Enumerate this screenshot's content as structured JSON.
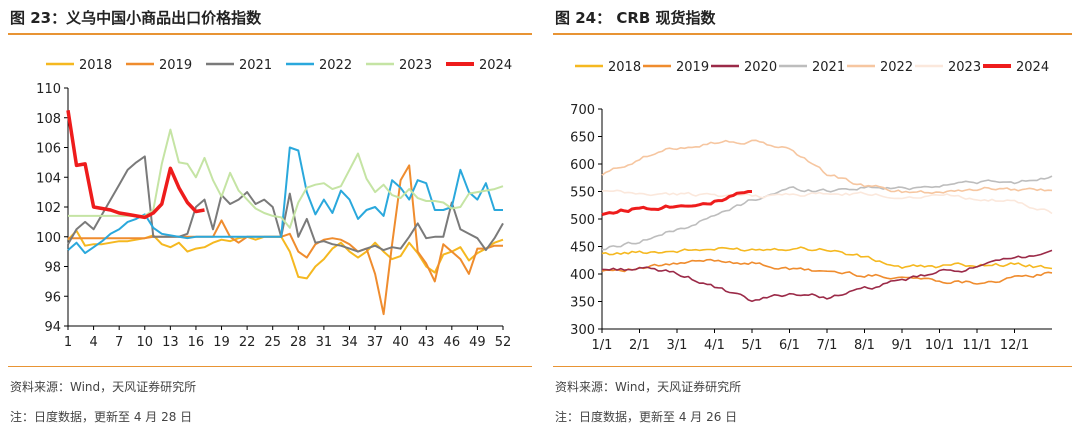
{
  "left": {
    "title": "图 23：义乌中国小商品出口价格指数",
    "source": "资料来源：Wind，天风证券研究所",
    "footnote": "注：日度数据，更新至 4 月 28 日"
  },
  "right": {
    "title": "图 24： CRB 现货指数",
    "source": "资料来源：Wind，天风证券研究所",
    "footnote": "注：日度数据，更新至 4 月 26 日"
  },
  "chart_data": [
    {
      "type": "line",
      "title": "图 23：义乌中国小商品出口价格指数",
      "x_tick_labels": [
        "1",
        "4",
        "7",
        "10",
        "13",
        "16",
        "19",
        "22",
        "25",
        "28",
        "31",
        "34",
        "37",
        "40",
        "43",
        "46",
        "49",
        "52"
      ],
      "xlim": [
        1,
        52
      ],
      "ylim": [
        94,
        110
      ],
      "y_ticks": [
        94,
        96,
        98,
        100,
        102,
        104,
        106,
        108,
        110
      ],
      "grid": false,
      "legend_position": "top",
      "series": [
        {
          "name": "2018",
          "color": "#f5b820",
          "values": [
            99.8,
            100.4,
            99.4,
            99.5,
            99.5,
            99.6,
            99.7,
            99.7,
            99.8,
            99.9,
            100.1,
            99.5,
            99.3,
            99.6,
            99.0,
            99.2,
            99.3,
            99.6,
            99.8,
            99.7,
            99.9,
            100.0,
            99.8,
            100.0,
            100.0,
            100.0,
            99.0,
            97.3,
            97.2,
            98.0,
            98.5,
            99.2,
            99.6,
            99.0,
            98.6,
            99.0,
            99.6,
            99.0,
            98.5,
            98.7,
            99.6,
            98.9,
            98.0,
            97.6,
            98.8,
            99.0,
            99.3,
            98.4,
            98.9,
            99.2,
            99.6,
            99.8
          ]
        },
        {
          "name": "2019",
          "color": "#ef8c2e",
          "values": [
            99.9,
            99.9,
            99.9,
            99.9,
            99.9,
            99.9,
            99.9,
            99.9,
            99.9,
            99.9,
            100.0,
            100.0,
            100.0,
            100.0,
            100.0,
            100.0,
            100.0,
            100.0,
            101.1,
            100.0,
            99.6,
            100.0,
            100.0,
            100.0,
            100.0,
            100.0,
            100.2,
            99.0,
            98.6,
            99.5,
            99.8,
            99.9,
            99.8,
            99.5,
            99.0,
            99.2,
            97.5,
            94.8,
            99.5,
            103.8,
            104.8,
            99.0,
            98.2,
            97.0,
            99.5,
            99.0,
            98.5,
            97.5,
            99.2,
            99.2,
            99.4,
            99.4
          ]
        },
        {
          "name": "2021",
          "color": "#7a7a7a",
          "values": [
            99.5,
            100.5,
            101.0,
            100.5,
            101.5,
            102.5,
            103.5,
            104.5,
            105.0,
            105.4,
            100.0,
            100.0,
            100.0,
            100.0,
            100.2,
            102.0,
            102.5,
            100.5,
            102.8,
            102.2,
            102.5,
            103.0,
            102.2,
            102.5,
            102.0,
            100.0,
            102.9,
            100.0,
            101.2,
            99.6,
            99.7,
            99.5,
            99.4,
            99.2,
            99.0,
            99.2,
            99.4,
            99.1,
            99.3,
            99.2,
            100.0,
            100.9,
            99.9,
            100.0,
            100.0,
            102.3,
            100.5,
            100.2,
            99.9,
            99.1,
            99.9,
            100.9
          ]
        },
        {
          "name": "2022",
          "color": "#2aa8dc",
          "values": [
            99.1,
            99.6,
            98.9,
            99.3,
            99.7,
            100.2,
            100.5,
            101.0,
            101.2,
            101.5,
            100.6,
            100.2,
            100.1,
            100.0,
            99.9,
            100.0,
            100.0,
            100.0,
            100.0,
            100.0,
            100.0,
            100.0,
            100.0,
            100.0,
            100.0,
            100.0,
            106.0,
            105.8,
            103.0,
            101.5,
            102.5,
            101.6,
            103.1,
            102.5,
            101.2,
            101.8,
            102.0,
            101.4,
            103.8,
            103.3,
            102.5,
            103.8,
            103.6,
            101.8,
            101.8,
            102.0,
            104.5,
            103.0,
            102.5,
            103.6,
            101.8,
            101.8
          ]
        },
        {
          "name": "2023",
          "color": "#c5e4a4",
          "values": [
            101.4,
            101.4,
            101.4,
            101.4,
            101.4,
            101.4,
            101.4,
            101.4,
            101.4,
            101.4,
            101.8,
            104.9,
            107.2,
            105.0,
            104.9,
            104.0,
            105.3,
            103.8,
            102.7,
            104.3,
            103.1,
            102.5,
            101.9,
            101.6,
            101.4,
            101.3,
            100.6,
            102.3,
            103.3,
            103.5,
            103.6,
            103.2,
            103.4,
            104.5,
            105.6,
            103.9,
            103.0,
            103.5,
            102.8,
            102.6,
            103.2,
            102.6,
            102.4,
            102.4,
            102.3,
            101.9,
            102.0,
            102.9,
            103.0,
            103.1,
            103.2,
            103.4
          ]
        },
        {
          "name": "2024",
          "color": "#ee1c1c",
          "values": [
            108.5,
            104.8,
            104.9,
            102.0,
            101.9,
            101.8,
            101.6,
            101.5,
            101.4,
            101.3,
            101.6,
            102.2,
            104.6,
            103.3,
            102.3,
            101.7,
            101.8
          ]
        }
      ]
    },
    {
      "type": "line",
      "title": "图 24： CRB 现货指数",
      "x_tick_labels": [
        "1/1",
        "2/1",
        "3/1",
        "4/1",
        "5/1",
        "6/1",
        "7/1",
        "8/1",
        "9/1",
        "10/1",
        "11/1",
        "12/1"
      ],
      "ylim": [
        300,
        700
      ],
      "y_ticks": [
        300,
        350,
        400,
        450,
        500,
        550,
        600,
        650,
        700
      ],
      "grid": false,
      "legend_position": "top",
      "monthly_series": true,
      "series": [
        {
          "name": "2018",
          "color": "#f5b820",
          "values": [
            435,
            440,
            442,
            445,
            445,
            448,
            445,
            430,
            412,
            414,
            417,
            418,
            410
          ]
        },
        {
          "name": "2019",
          "color": "#ef8c2e",
          "values": [
            408,
            410,
            418,
            425,
            420,
            408,
            405,
            398,
            395,
            388,
            385,
            392,
            402
          ]
        },
        {
          "name": "2020",
          "color": "#9b2a48",
          "values": [
            408,
            410,
            402,
            376,
            350,
            365,
            358,
            372,
            388,
            403,
            412,
            428,
            443
          ]
        },
        {
          "name": "2021",
          "color": "#bdbdbd",
          "values": [
            445,
            460,
            480,
            505,
            535,
            555,
            552,
            558,
            555,
            562,
            568,
            565,
            578
          ]
        },
        {
          "name": "2022",
          "color": "#f6c6a0",
          "values": [
            580,
            610,
            630,
            640,
            640,
            628,
            582,
            560,
            550,
            550,
            555,
            555,
            552
          ]
        },
        {
          "name": "2023",
          "color": "#fbe8dc",
          "values": [
            550,
            545,
            545,
            545,
            540,
            545,
            545,
            545,
            540,
            545,
            538,
            530,
            510
          ]
        },
        {
          "name": "2024",
          "color": "#ee1c1c",
          "values": [
            510,
            520,
            525,
            532,
            550
          ]
        }
      ]
    }
  ]
}
